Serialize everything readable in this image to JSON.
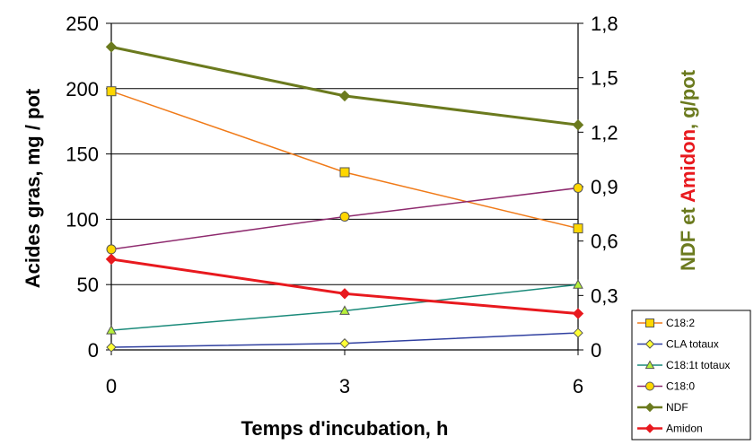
{
  "chart_data": {
    "type": "line",
    "x": [
      0,
      3,
      6
    ],
    "xlabel": "Temps d'incubation, h",
    "ylabel": "Acides gras, mg / pot",
    "y2label_parts": [
      {
        "text": "NDF",
        "color": "#6b7a1e"
      },
      {
        "text": " et ",
        "color": "#6b7a1e"
      },
      {
        "text": "Amidon",
        "color": "#e8191e"
      },
      {
        "text": ", g/pot",
        "color": "#6b7a1e"
      }
    ],
    "ylim": [
      0,
      250
    ],
    "yticks": [
      0,
      50,
      100,
      150,
      200,
      250
    ],
    "y2lim": [
      0,
      1.8
    ],
    "y2ticks": [
      "0",
      "0,3",
      "0,6",
      "0,9",
      "1,2",
      "1,5",
      "1,8"
    ],
    "xticks": [
      "0",
      "3",
      "6"
    ],
    "grid": "horizontal",
    "legend_position": "bottom-right",
    "series": [
      {
        "name": "C18:2",
        "axis": "left",
        "values": [
          198,
          136,
          93
        ],
        "color": "#f07a18",
        "marker": "square",
        "marker_fill": "#ffd700",
        "width": 1.5
      },
      {
        "name": "CLA totaux",
        "axis": "left",
        "values": [
          2,
          5,
          13
        ],
        "color": "#3040a0",
        "marker": "diamond",
        "marker_fill": "#ffff33",
        "width": 1.5
      },
      {
        "name": "C18:1t totaux",
        "axis": "left",
        "values": [
          15,
          30,
          50
        ],
        "color": "#1a8a7a",
        "marker": "triangle",
        "marker_fill": "#b6f03a",
        "width": 1.5
      },
      {
        "name": "C18:0",
        "axis": "left",
        "values": [
          77,
          102,
          124
        ],
        "color": "#8e2a6e",
        "marker": "circle",
        "marker_fill": "#ffd700",
        "width": 1.5
      },
      {
        "name": "NDF",
        "axis": "right",
        "values": [
          1.67,
          1.4,
          1.24
        ],
        "color": "#6b7a1e",
        "marker": "diamond",
        "marker_fill": "#6b7a1e",
        "width": 3
      },
      {
        "name": "Amidon",
        "axis": "right",
        "values": [
          0.5,
          0.31,
          0.2
        ],
        "color": "#e8191e",
        "marker": "diamond",
        "marker_fill": "#e8191e",
        "width": 3
      }
    ]
  }
}
